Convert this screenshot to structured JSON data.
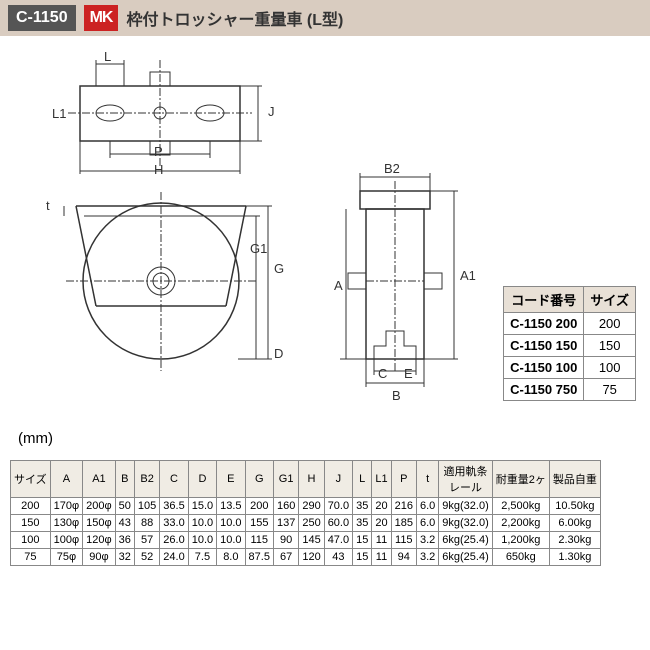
{
  "header": {
    "code": "C-1150",
    "brand": "MK",
    "title": "枠付トロッシャー重量車 (L型)"
  },
  "unit_label": "(mm)",
  "dim_labels": {
    "L": "L",
    "L1": "L1",
    "P": "P",
    "H": "H",
    "t": "t",
    "J": "J",
    "G": "G",
    "G1": "G1",
    "D": "D",
    "B2": "B2",
    "A": "A",
    "A1": "A1",
    "B": "B",
    "C": "C",
    "E": "E"
  },
  "code_table": {
    "headers": [
      "コード番号",
      "サイズ"
    ],
    "rows": [
      [
        "C-1150 200",
        "200"
      ],
      [
        "C-1150 150",
        "150"
      ],
      [
        "C-1150 100",
        "100"
      ],
      [
        "C-1150 750",
        "75"
      ]
    ]
  },
  "spec_table": {
    "headers": [
      "サイズ",
      "A",
      "A1",
      "B",
      "B2",
      "C",
      "D",
      "E",
      "G",
      "G1",
      "H",
      "J",
      "L",
      "L1",
      "P",
      "t",
      "適用軌条\nレール",
      "耐重量2ヶ",
      "製品自重"
    ],
    "rows": [
      [
        "200",
        "170φ",
        "200φ",
        "50",
        "105",
        "36.5",
        "15.0",
        "13.5",
        "200",
        "160",
        "290",
        "70.0",
        "35",
        "20",
        "216",
        "6.0",
        "9kg(32.0)",
        "2,500kg",
        "10.50kg"
      ],
      [
        "150",
        "130φ",
        "150φ",
        "43",
        "88",
        "33.0",
        "10.0",
        "10.0",
        "155",
        "137",
        "250",
        "60.0",
        "35",
        "20",
        "185",
        "6.0",
        "9kg(32.0)",
        "2,200kg",
        "6.00kg"
      ],
      [
        "100",
        "100φ",
        "120φ",
        "36",
        "57",
        "26.0",
        "10.0",
        "10.0",
        "115",
        "90",
        "145",
        "47.0",
        "15",
        "11",
        "115",
        "3.2",
        "6kg(25.4)",
        "1,200kg",
        "2.30kg"
      ],
      [
        "75",
        "75φ",
        "90φ",
        "32",
        "52",
        "24.0",
        "7.5",
        "8.0",
        "87.5",
        "67",
        "120",
        "43",
        "15",
        "11",
        "94",
        "3.2",
        "6kg(25.4)",
        "650kg",
        "1.30kg"
      ]
    ]
  },
  "colors": {
    "header_bg": "#d9ccc0",
    "code_bg": "#555555",
    "brand_bg": "#c22222",
    "line": "#333333",
    "table_header_bg": "#e8e0d6"
  }
}
